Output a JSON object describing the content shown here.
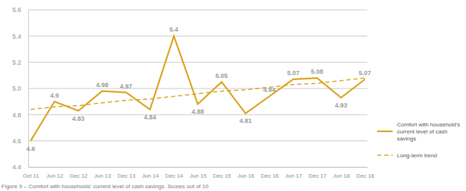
{
  "chart_data": {
    "type": "line",
    "title": "Figure 9 – Comfort with households' current level of cash savings. Scores out of 10",
    "categories": [
      "Oct 11",
      "Jun 12",
      "Dec 12",
      "Jun 13",
      "Dec 13",
      "Jun 14",
      "Dec 14",
      "Jun 15",
      "Dec 15",
      "Jun 16",
      "Dec 16",
      "Jun 17",
      "Dec 17",
      "Jun 18",
      "Dec 18"
    ],
    "series": [
      {
        "name": "Comfort with household's current level of cash savings",
        "color": "#d9a21b",
        "line_style": "solid",
        "data_labels": true,
        "values": [
          4.6,
          4.9,
          4.83,
          4.98,
          4.97,
          4.84,
          5.4,
          4.88,
          5.05,
          4.81,
          4.94,
          5.07,
          5.08,
          4.93,
          5.07
        ]
      },
      {
        "name": "Long-term trend",
        "color": "#d9a21b",
        "line_style": "dashed",
        "values": [
          4.84,
          4.86,
          4.87,
          4.89,
          4.91,
          4.92,
          4.94,
          4.96,
          4.98,
          4.99,
          5.01,
          5.03,
          5.04,
          5.06,
          5.08
        ]
      }
    ],
    "ylim": [
      4.4,
      5.6
    ],
    "yticks": [
      4.4,
      4.6,
      4.8,
      5.2,
      5.4,
      5.6,
      {
        "value": 5,
        "label": "5.0"
      }
    ],
    "grid": true,
    "legend": "right"
  }
}
